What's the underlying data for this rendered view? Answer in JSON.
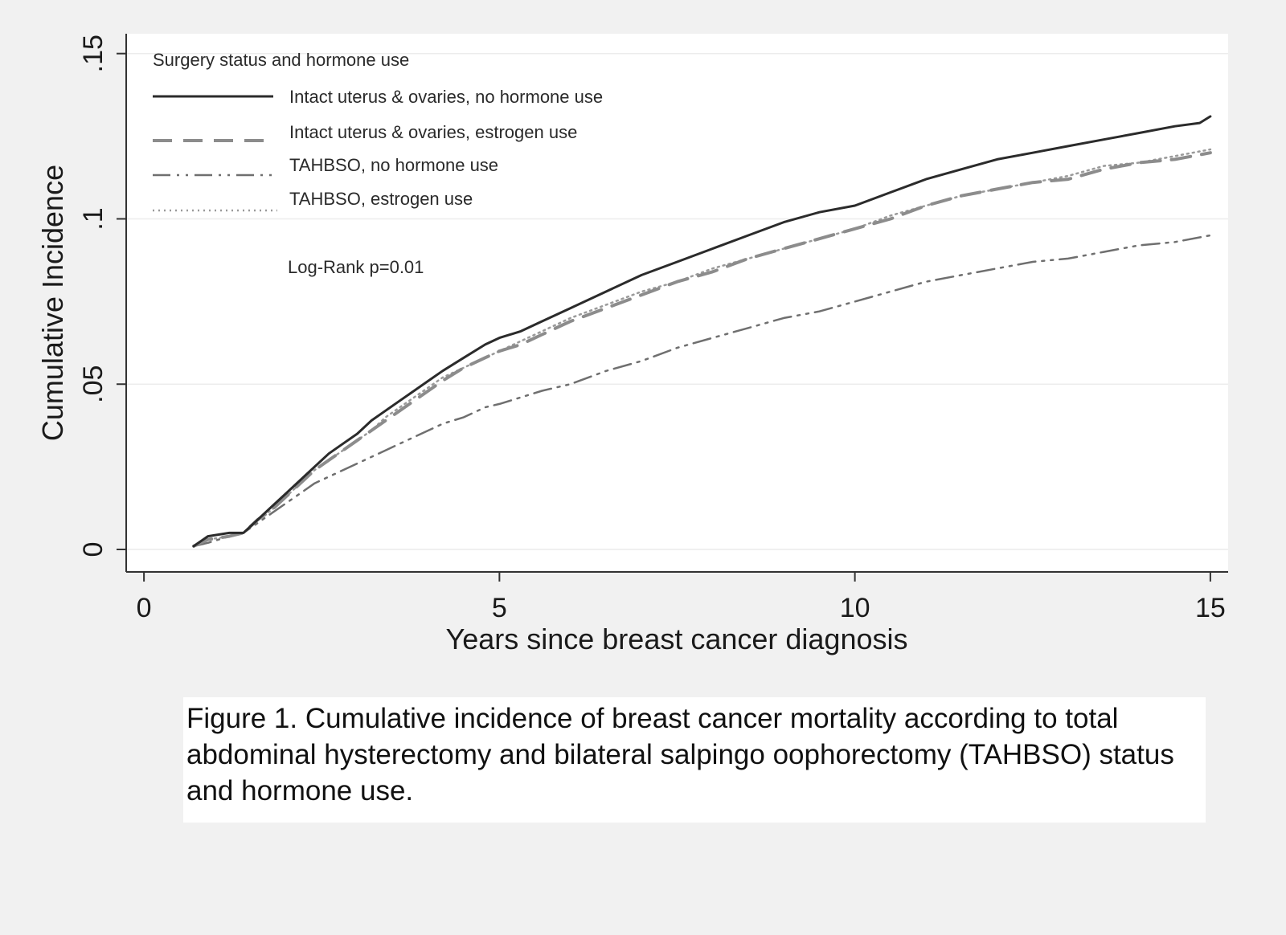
{
  "colors": {
    "figure_bg": "#f1f1f1",
    "plot_bg": "#ffffff",
    "axis": "#333333",
    "line_dark": "#2b2b2b",
    "line_gray": "#8c8c8c",
    "line_mid": "#6f6f6f",
    "line_light": "#9a9a9a"
  },
  "chart_data": {
    "type": "line",
    "title": "",
    "xlabel": "Years since breast cancer diagnosis",
    "ylabel": "Cumulative Incidence",
    "xlim": [
      -0.25,
      15.25
    ],
    "ylim": [
      -0.0068,
      0.156
    ],
    "xticks": [
      0,
      5,
      10,
      15
    ],
    "xtick_labels": [
      "0",
      "5",
      "10",
      "15"
    ],
    "yticks": [
      0,
      0.05,
      0.1,
      0.15
    ],
    "ytick_labels": [
      "0",
      ".05",
      ".1",
      ".15"
    ],
    "legend": {
      "title": "Surgery status and hormone use",
      "position": "top-left"
    },
    "annotation": "Log-Rank p=0.01",
    "series": [
      {
        "name": "Intact uterus & ovaries, no hormone use",
        "style": "solid",
        "color": "#2b2b2b",
        "x": [
          0.7,
          0.9,
          1.2,
          1.4,
          1.6,
          1.8,
          2.0,
          2.2,
          2.4,
          2.6,
          2.8,
          3.0,
          3.2,
          3.4,
          3.6,
          3.8,
          4.0,
          4.2,
          4.5,
          4.8,
          5.0,
          5.3,
          5.6,
          6.0,
          6.5,
          7.0,
          7.5,
          8.0,
          8.5,
          9.0,
          9.5,
          10.0,
          10.5,
          11.0,
          11.5,
          12.0,
          12.5,
          13.0,
          13.5,
          14.0,
          14.5,
          14.85,
          15.0
        ],
        "y": [
          0.001,
          0.004,
          0.005,
          0.005,
          0.009,
          0.013,
          0.017,
          0.021,
          0.025,
          0.029,
          0.032,
          0.035,
          0.039,
          0.042,
          0.045,
          0.048,
          0.051,
          0.054,
          0.058,
          0.062,
          0.064,
          0.066,
          0.069,
          0.073,
          0.078,
          0.083,
          0.087,
          0.091,
          0.095,
          0.099,
          0.102,
          0.104,
          0.108,
          0.112,
          0.115,
          0.118,
          0.12,
          0.122,
          0.124,
          0.126,
          0.128,
          0.129,
          0.131
        ]
      },
      {
        "name": "Intact uterus & ovaries, estrogen use",
        "style": "longdash",
        "color": "#8c8c8c",
        "x": [
          0.7,
          0.9,
          1.2,
          1.4,
          1.6,
          1.8,
          2.0,
          2.2,
          2.4,
          2.6,
          2.8,
          3.0,
          3.2,
          3.4,
          3.6,
          3.8,
          4.0,
          4.2,
          4.5,
          4.8,
          5.0,
          5.3,
          5.6,
          6.0,
          6.5,
          7.0,
          7.5,
          8.0,
          8.5,
          9.0,
          9.5,
          10.0,
          10.5,
          11.0,
          11.5,
          12.0,
          12.5,
          13.0,
          13.5,
          14.0,
          14.5,
          15.0
        ],
        "y": [
          0.001,
          0.003,
          0.004,
          0.005,
          0.009,
          0.012,
          0.016,
          0.02,
          0.024,
          0.027,
          0.03,
          0.033,
          0.036,
          0.039,
          0.042,
          0.045,
          0.048,
          0.051,
          0.055,
          0.058,
          0.06,
          0.062,
          0.065,
          0.069,
          0.073,
          0.077,
          0.081,
          0.084,
          0.088,
          0.091,
          0.094,
          0.097,
          0.1,
          0.104,
          0.107,
          0.109,
          0.111,
          0.112,
          0.115,
          0.117,
          0.118,
          0.12
        ]
      },
      {
        "name": "TAHBSO, no hormone use",
        "style": "dashdot",
        "color": "#6f6f6f",
        "x": [
          0.7,
          0.9,
          1.2,
          1.4,
          1.6,
          1.8,
          2.0,
          2.2,
          2.4,
          2.6,
          2.8,
          3.0,
          3.2,
          3.4,
          3.6,
          3.8,
          4.0,
          4.2,
          4.5,
          4.8,
          5.0,
          5.3,
          5.6,
          6.0,
          6.5,
          7.0,
          7.5,
          8.0,
          8.5,
          9.0,
          9.5,
          10.0,
          10.5,
          11.0,
          11.5,
          12.0,
          12.5,
          13.0,
          13.5,
          14.0,
          14.5,
          15.0
        ],
        "y": [
          0.001,
          0.002,
          0.004,
          0.005,
          0.008,
          0.011,
          0.014,
          0.017,
          0.02,
          0.022,
          0.024,
          0.026,
          0.028,
          0.03,
          0.032,
          0.034,
          0.036,
          0.038,
          0.04,
          0.043,
          0.044,
          0.046,
          0.048,
          0.05,
          0.054,
          0.057,
          0.061,
          0.064,
          0.067,
          0.07,
          0.072,
          0.075,
          0.078,
          0.081,
          0.083,
          0.085,
          0.087,
          0.088,
          0.09,
          0.092,
          0.093,
          0.095
        ]
      },
      {
        "name": "TAHBSO, estrogen use",
        "style": "dotted",
        "color": "#9a9a9a",
        "x": [
          0.7,
          0.9,
          1.2,
          1.4,
          1.6,
          1.8,
          2.0,
          2.2,
          2.4,
          2.6,
          2.8,
          3.0,
          3.2,
          3.4,
          3.6,
          3.8,
          4.0,
          4.2,
          4.5,
          4.8,
          5.0,
          5.3,
          5.6,
          6.0,
          6.5,
          7.0,
          7.5,
          8.0,
          8.5,
          9.0,
          9.5,
          10.0,
          10.5,
          11.0,
          11.5,
          12.0,
          12.5,
          13.0,
          13.5,
          14.0,
          14.5,
          15.0
        ],
        "y": [
          0.001,
          0.003,
          0.004,
          0.005,
          0.009,
          0.012,
          0.016,
          0.02,
          0.024,
          0.027,
          0.03,
          0.033,
          0.036,
          0.04,
          0.043,
          0.046,
          0.049,
          0.052,
          0.055,
          0.058,
          0.06,
          0.063,
          0.066,
          0.07,
          0.074,
          0.078,
          0.081,
          0.085,
          0.088,
          0.091,
          0.094,
          0.097,
          0.101,
          0.104,
          0.107,
          0.109,
          0.111,
          0.113,
          0.116,
          0.117,
          0.119,
          0.121
        ]
      }
    ]
  },
  "caption": "Figure 1. Cumulative incidence of breast cancer mortality according to total abdominal hysterectomy and bilateral salpingo oophorectomy (TAHBSO) status and hormone use."
}
